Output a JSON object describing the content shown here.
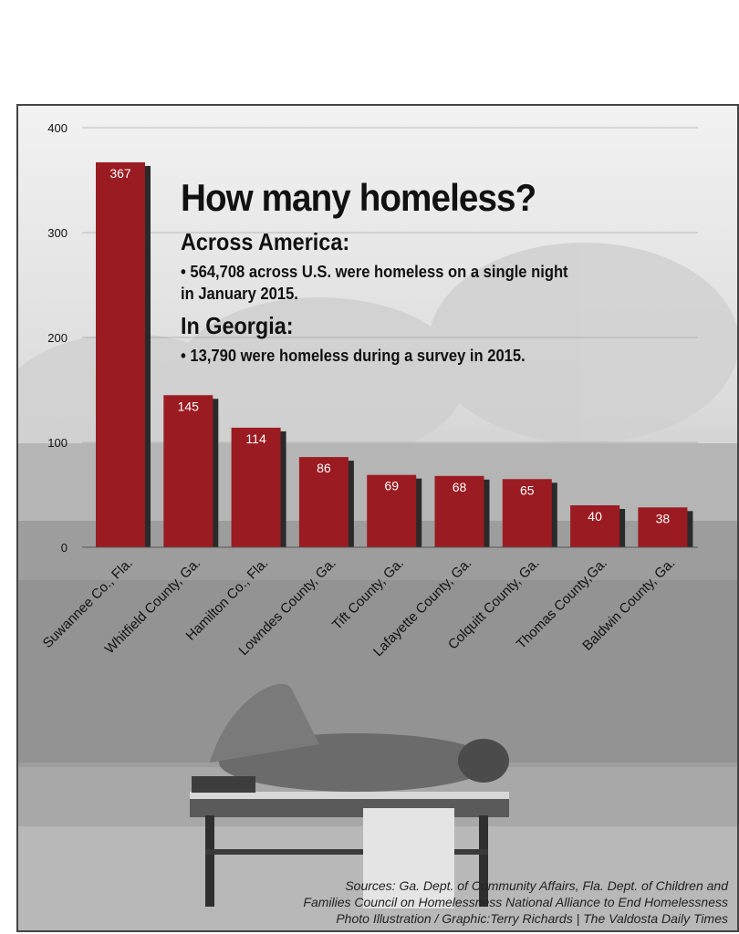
{
  "chart_data": {
    "type": "bar",
    "categories": [
      "Suwannee Co., Fla.",
      "Whitfield County, Ga.",
      "Hamilton Co., Fla.",
      "Lowndes County, Ga.",
      "Tift County, Ga.",
      "Lafayette County, Ga.",
      "Colquitt County, Ga.",
      "Thomas County,Ga.",
      "Baldwin County, Ga."
    ],
    "values": [
      367,
      145,
      114,
      86,
      69,
      68,
      65,
      40,
      38
    ],
    "ylim": [
      0,
      400
    ],
    "yticks": [
      "0",
      "100",
      "200",
      "300",
      "400"
    ],
    "grid": true,
    "bar_color": "#9b1b22",
    "bar_shadow_color": "#2a2a2a",
    "title": "How many homeless?",
    "xlabel": "",
    "ylabel": ""
  },
  "info": {
    "america_heading": "Across America:",
    "america_bullet_line1": "• 564,708 across U.S. were homeless on a single night",
    "america_bullet_line2": "in January 2015.",
    "georgia_heading": "In Georgia:",
    "georgia_bullet": "• 13,790 were homeless during a survey in 2015."
  },
  "credits": {
    "line1": "Sources: Ga. Dept. of Community Affairs, Fla. Dept. of Children and",
    "line2": "Families Council on Homelessness National Alliance to End Homelessness",
    "line3": "Photo Illustration / Graphic:Terry Richards | The Valdosta Daily Times"
  },
  "background": {
    "depiction": "black-and-white photo of a person sleeping on a park bench beside a hedge"
  }
}
